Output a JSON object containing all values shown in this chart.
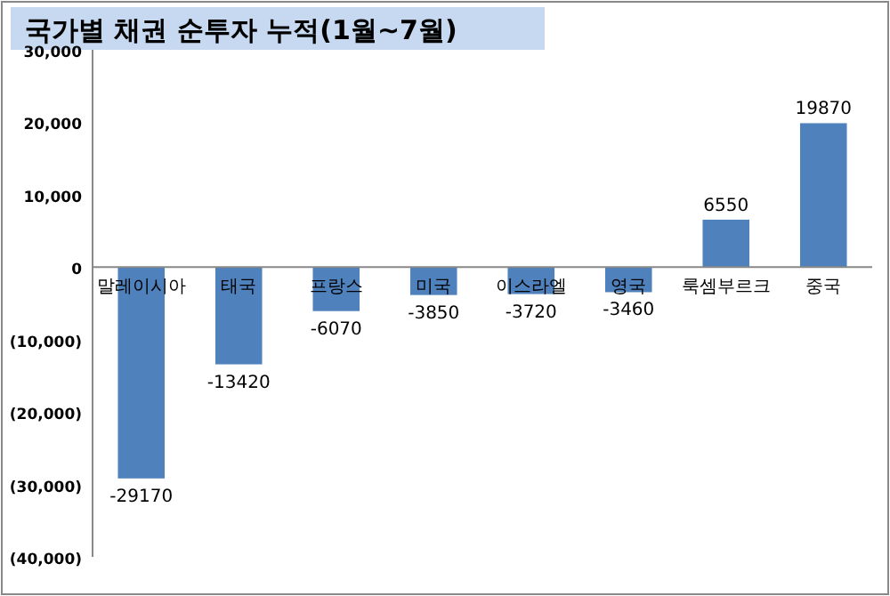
{
  "chart_data": {
    "type": "bar",
    "title": "국가별 채권 순투자 누적(1월~7월)",
    "categories": [
      "말레이시아",
      "태국",
      "프랑스",
      "미국",
      "이스라엘",
      "영국",
      "룩셈부르크",
      "중국"
    ],
    "values": [
      -29170,
      -13420,
      -6070,
      -3850,
      -3720,
      -3460,
      6550,
      19870
    ],
    "color": "#4f81bd",
    "ylim": [
      -40000,
      30000
    ],
    "yticks": [
      {
        "value": 30000,
        "label": "30,000"
      },
      {
        "value": 20000,
        "label": "20,000"
      },
      {
        "value": 10000,
        "label": "10,000"
      },
      0,
      {
        "value": -10000,
        "label": "(10,000)"
      },
      {
        "value": -20000,
        "label": "(20,000)"
      },
      {
        "value": -30000,
        "label": "(30,000)"
      },
      {
        "value": -40000,
        "label": "(40,000)"
      }
    ],
    "data_labels": true
  }
}
